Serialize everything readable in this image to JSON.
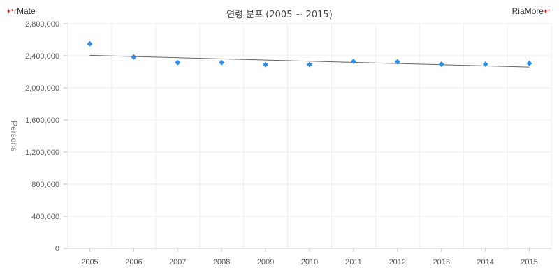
{
  "brand": {
    "left": "rMate",
    "right": "RiaMore",
    "mark": "+⁺"
  },
  "chart_data": {
    "type": "scatter",
    "title": "연령 분포 (2005 ~ 2015)",
    "xlabel": "",
    "ylabel": "Persons",
    "categories": [
      "2005",
      "2006",
      "2007",
      "2008",
      "2009",
      "2010",
      "2011",
      "2012",
      "2013",
      "2014",
      "2015"
    ],
    "series": [
      {
        "values": [
          2550000,
          2385000,
          2315000,
          2315000,
          2290000,
          2290000,
          2330000,
          2325000,
          2295000,
          2295000,
          2305000
        ],
        "marker": "diamond",
        "color": "#2f8fe8"
      }
    ],
    "trendline": {
      "start": 2405000,
      "end": 2260000,
      "color": "#666666"
    },
    "ylim": [
      0,
      2800000
    ],
    "yticks": [
      "0",
      "400,000",
      "800,000",
      "1,200,000",
      "1,600,000",
      "2,000,000",
      "2,400,000",
      "2,800,000"
    ],
    "grid": true
  }
}
